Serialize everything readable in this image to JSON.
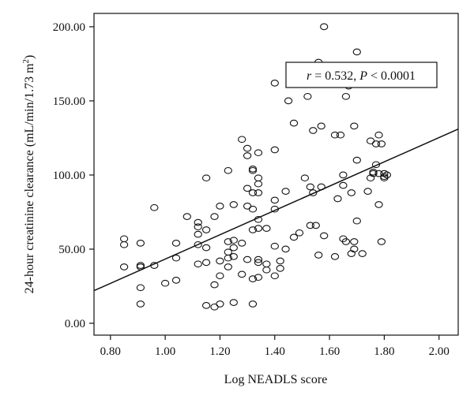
{
  "chart_data": {
    "type": "scatter",
    "xlabel": "Log NEADLS score",
    "ylabel_main": "24-hour creatinine clearance (mL/min/1.73 m",
    "ylabel_sup": "2",
    "ylabel_close": ")",
    "xlim": [
      0.74,
      2.07
    ],
    "ylim": [
      -8,
      209
    ],
    "xticks": [
      0.8,
      1.0,
      1.2,
      1.4,
      1.6,
      1.8,
      2.0
    ],
    "xtick_labels": [
      "0.80",
      "1.00",
      "1.20",
      "1.40",
      "1.60",
      "1.80",
      "2.00"
    ],
    "yticks": [
      0,
      50,
      100,
      150,
      200
    ],
    "ytick_labels": [
      "0.00",
      "50.00",
      "100.00",
      "150.00",
      "200.00"
    ],
    "annotation": {
      "r_label": "r",
      "r_value": " = 0.532, ",
      "p_label": "P",
      "p_value": " < 0.0001",
      "x": 1.69,
      "y": 170
    },
    "regression_line": {
      "x": [
        0.74,
        2.07
      ],
      "y": [
        22,
        131
      ]
    },
    "points": [
      {
        "x": 0.85,
        "y": 57
      },
      {
        "x": 0.85,
        "y": 53
      },
      {
        "x": 0.85,
        "y": 38
      },
      {
        "x": 0.91,
        "y": 54
      },
      {
        "x": 0.91,
        "y": 39
      },
      {
        "x": 0.91,
        "y": 38
      },
      {
        "x": 0.91,
        "y": 24
      },
      {
        "x": 0.91,
        "y": 13
      },
      {
        "x": 0.96,
        "y": 78
      },
      {
        "x": 0.96,
        "y": 39
      },
      {
        "x": 1.0,
        "y": 27
      },
      {
        "x": 1.04,
        "y": 54
      },
      {
        "x": 1.04,
        "y": 44
      },
      {
        "x": 1.04,
        "y": 29
      },
      {
        "x": 1.08,
        "y": 72
      },
      {
        "x": 1.12,
        "y": 68
      },
      {
        "x": 1.12,
        "y": 65
      },
      {
        "x": 1.12,
        "y": 60
      },
      {
        "x": 1.12,
        "y": 40
      },
      {
        "x": 1.12,
        "y": 53
      },
      {
        "x": 1.15,
        "y": 98
      },
      {
        "x": 1.15,
        "y": 63
      },
      {
        "x": 1.15,
        "y": 51
      },
      {
        "x": 1.15,
        "y": 41
      },
      {
        "x": 1.15,
        "y": 12
      },
      {
        "x": 1.18,
        "y": 72
      },
      {
        "x": 1.18,
        "y": 26
      },
      {
        "x": 1.18,
        "y": 11
      },
      {
        "x": 1.2,
        "y": 79
      },
      {
        "x": 1.2,
        "y": 42
      },
      {
        "x": 1.2,
        "y": 32
      },
      {
        "x": 1.2,
        "y": 13
      },
      {
        "x": 1.23,
        "y": 103
      },
      {
        "x": 1.23,
        "y": 55
      },
      {
        "x": 1.23,
        "y": 48
      },
      {
        "x": 1.23,
        "y": 44
      },
      {
        "x": 1.23,
        "y": 38
      },
      {
        "x": 1.25,
        "y": 80
      },
      {
        "x": 1.25,
        "y": 56
      },
      {
        "x": 1.25,
        "y": 51
      },
      {
        "x": 1.25,
        "y": 45
      },
      {
        "x": 1.25,
        "y": 14
      },
      {
        "x": 1.28,
        "y": 124
      },
      {
        "x": 1.28,
        "y": 54
      },
      {
        "x": 1.28,
        "y": 33
      },
      {
        "x": 1.3,
        "y": 118
      },
      {
        "x": 1.3,
        "y": 91
      },
      {
        "x": 1.3,
        "y": 79
      },
      {
        "x": 1.3,
        "y": 43
      },
      {
        "x": 1.3,
        "y": 113
      },
      {
        "x": 1.32,
        "y": 104
      },
      {
        "x": 1.32,
        "y": 103
      },
      {
        "x": 1.32,
        "y": 88
      },
      {
        "x": 1.32,
        "y": 77
      },
      {
        "x": 1.32,
        "y": 63
      },
      {
        "x": 1.32,
        "y": 30
      },
      {
        "x": 1.32,
        "y": 13
      },
      {
        "x": 1.34,
        "y": 115
      },
      {
        "x": 1.34,
        "y": 98
      },
      {
        "x": 1.34,
        "y": 94
      },
      {
        "x": 1.34,
        "y": 88
      },
      {
        "x": 1.34,
        "y": 70
      },
      {
        "x": 1.34,
        "y": 64
      },
      {
        "x": 1.34,
        "y": 43
      },
      {
        "x": 1.34,
        "y": 41
      },
      {
        "x": 1.34,
        "y": 31
      },
      {
        "x": 1.37,
        "y": 64
      },
      {
        "x": 1.37,
        "y": 36
      },
      {
        "x": 1.37,
        "y": 40
      },
      {
        "x": 1.4,
        "y": 162
      },
      {
        "x": 1.4,
        "y": 117
      },
      {
        "x": 1.4,
        "y": 83
      },
      {
        "x": 1.4,
        "y": 77
      },
      {
        "x": 1.4,
        "y": 52
      },
      {
        "x": 1.4,
        "y": 32
      },
      {
        "x": 1.42,
        "y": 42
      },
      {
        "x": 1.42,
        "y": 37
      },
      {
        "x": 1.44,
        "y": 50
      },
      {
        "x": 1.44,
        "y": 89
      },
      {
        "x": 1.45,
        "y": 150
      },
      {
        "x": 1.47,
        "y": 135
      },
      {
        "x": 1.47,
        "y": 58
      },
      {
        "x": 1.49,
        "y": 61
      },
      {
        "x": 1.51,
        "y": 98
      },
      {
        "x": 1.52,
        "y": 153
      },
      {
        "x": 1.53,
        "y": 92
      },
      {
        "x": 1.53,
        "y": 66
      },
      {
        "x": 1.54,
        "y": 130
      },
      {
        "x": 1.54,
        "y": 88
      },
      {
        "x": 1.55,
        "y": 66
      },
      {
        "x": 1.56,
        "y": 176
      },
      {
        "x": 1.56,
        "y": 46
      },
      {
        "x": 1.57,
        "y": 133
      },
      {
        "x": 1.57,
        "y": 92
      },
      {
        "x": 1.58,
        "y": 200
      },
      {
        "x": 1.58,
        "y": 59
      },
      {
        "x": 1.62,
        "y": 127
      },
      {
        "x": 1.62,
        "y": 45
      },
      {
        "x": 1.63,
        "y": 84
      },
      {
        "x": 1.64,
        "y": 127
      },
      {
        "x": 1.65,
        "y": 100
      },
      {
        "x": 1.65,
        "y": 93
      },
      {
        "x": 1.65,
        "y": 57
      },
      {
        "x": 1.66,
        "y": 153
      },
      {
        "x": 1.66,
        "y": 55
      },
      {
        "x": 1.67,
        "y": 160
      },
      {
        "x": 1.68,
        "y": 88
      },
      {
        "x": 1.68,
        "y": 47
      },
      {
        "x": 1.69,
        "y": 133
      },
      {
        "x": 1.69,
        "y": 55
      },
      {
        "x": 1.69,
        "y": 50
      },
      {
        "x": 1.7,
        "y": 183
      },
      {
        "x": 1.7,
        "y": 110
      },
      {
        "x": 1.7,
        "y": 69
      },
      {
        "x": 1.72,
        "y": 47
      },
      {
        "x": 1.74,
        "y": 89
      },
      {
        "x": 1.75,
        "y": 123
      },
      {
        "x": 1.75,
        "y": 98
      },
      {
        "x": 1.76,
        "y": 102
      },
      {
        "x": 1.76,
        "y": 101
      },
      {
        "x": 1.77,
        "y": 121
      },
      {
        "x": 1.77,
        "y": 107
      },
      {
        "x": 1.78,
        "y": 127
      },
      {
        "x": 1.78,
        "y": 101
      },
      {
        "x": 1.78,
        "y": 80
      },
      {
        "x": 1.79,
        "y": 121
      },
      {
        "x": 1.79,
        "y": 55
      },
      {
        "x": 1.8,
        "y": 101
      },
      {
        "x": 1.8,
        "y": 99
      },
      {
        "x": 1.8,
        "y": 98
      },
      {
        "x": 1.81,
        "y": 100
      }
    ]
  }
}
